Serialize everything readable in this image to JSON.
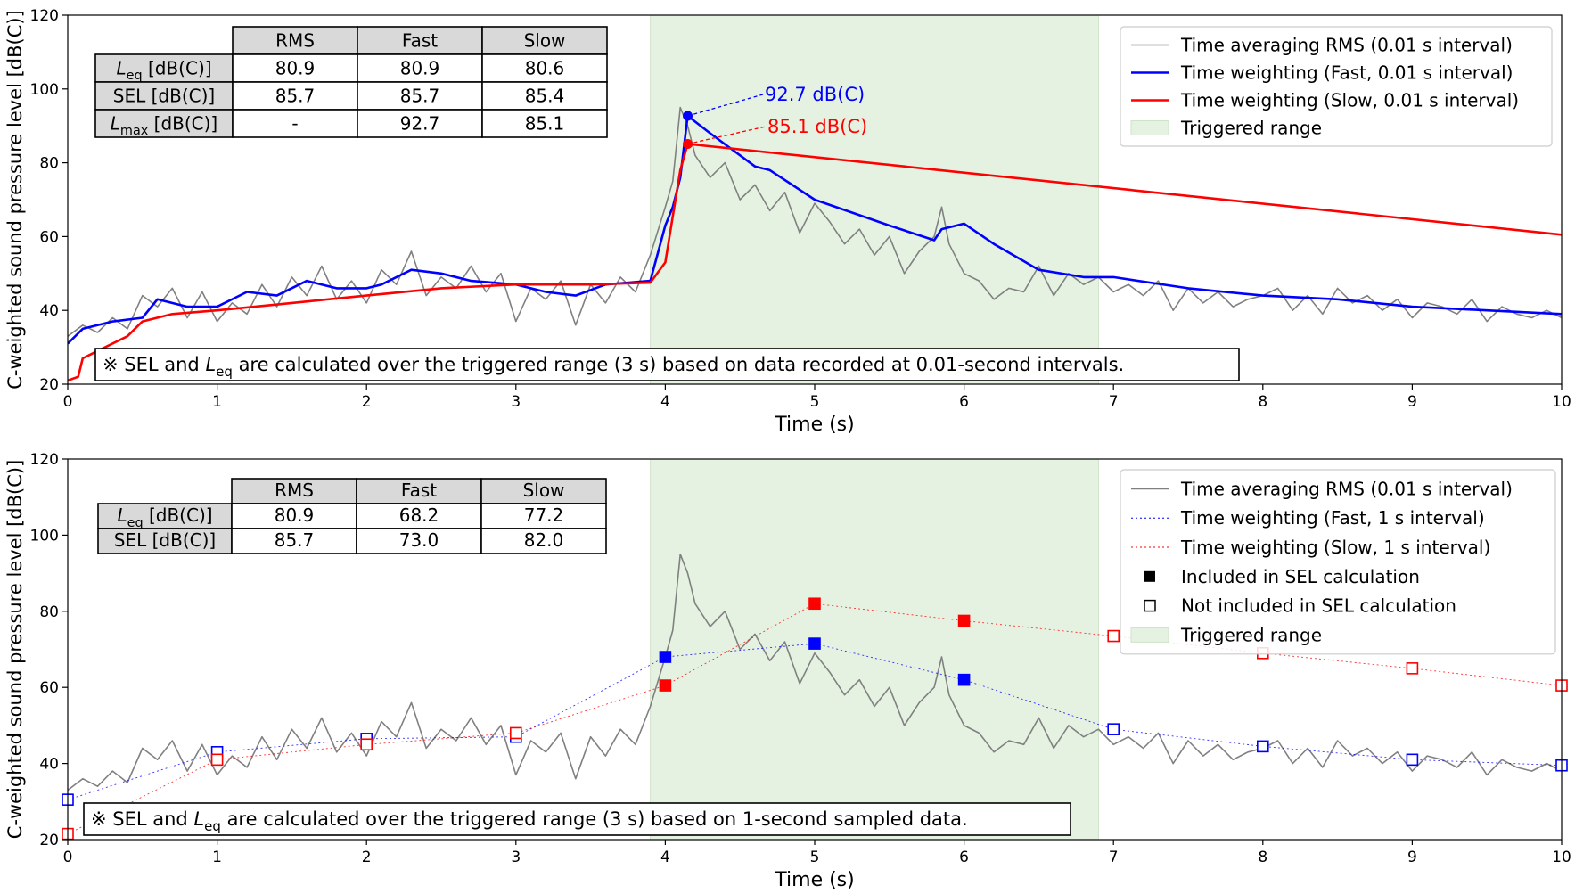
{
  "chart_data": [
    {
      "type": "line",
      "xlabel": "Time (s)",
      "ylabel": "C-weighted sound pressure level [dB(C)]",
      "xlim": [
        0,
        10
      ],
      "ylim": [
        20,
        120
      ],
      "xticks": [
        "0",
        "1",
        "2",
        "3",
        "4",
        "5",
        "6",
        "7",
        "8",
        "9",
        "10"
      ],
      "yticks": [
        "20",
        "40",
        "60",
        "80",
        "100",
        "120"
      ],
      "grid": false,
      "legend_position": "top-right",
      "triggered_range": [
        3.9,
        6.9
      ],
      "legend": [
        {
          "label": "Time averaging RMS (0.01 s interval)",
          "color": "#808080",
          "style": "line"
        },
        {
          "label": "Time weighting (Fast, 0.01 s interval)",
          "color": "#0000ff",
          "style": "line"
        },
        {
          "label": "Time weighting (Slow, 0.01 s interval)",
          "color": "#ff0000",
          "style": "line"
        },
        {
          "label": "Triggered range",
          "color": "#e5f2e1",
          "style": "patch"
        }
      ],
      "series": [
        {
          "name": "Time averaging RMS (0.01 s interval)",
          "color": "#808080",
          "x": [
            0,
            0.1,
            0.2,
            0.3,
            0.4,
            0.5,
            0.6,
            0.7,
            0.8,
            0.9,
            1.0,
            1.1,
            1.2,
            1.3,
            1.4,
            1.5,
            1.6,
            1.7,
            1.8,
            1.9,
            2.0,
            2.1,
            2.2,
            2.3,
            2.4,
            2.5,
            2.6,
            2.7,
            2.8,
            2.9,
            3.0,
            3.1,
            3.2,
            3.3,
            3.4,
            3.5,
            3.6,
            3.7,
            3.8,
            3.9,
            4.0,
            4.05,
            4.1,
            4.15,
            4.2,
            4.3,
            4.4,
            4.5,
            4.6,
            4.7,
            4.8,
            4.9,
            5.0,
            5.1,
            5.2,
            5.3,
            5.4,
            5.5,
            5.6,
            5.7,
            5.8,
            5.85,
            5.9,
            6.0,
            6.1,
            6.2,
            6.3,
            6.4,
            6.5,
            6.6,
            6.7,
            6.8,
            6.9,
            7.0,
            7.1,
            7.2,
            7.3,
            7.4,
            7.5,
            7.6,
            7.7,
            7.8,
            7.9,
            8.0,
            8.1,
            8.2,
            8.3,
            8.4,
            8.5,
            8.6,
            8.7,
            8.8,
            8.9,
            9.0,
            9.1,
            9.2,
            9.3,
            9.4,
            9.5,
            9.6,
            9.7,
            9.8,
            9.9,
            10.0
          ],
          "values": [
            33,
            36,
            34,
            38,
            35,
            44,
            41,
            46,
            38,
            45,
            37,
            42,
            39,
            47,
            41,
            49,
            44,
            52,
            43,
            48,
            42,
            51,
            47,
            56,
            44,
            49,
            46,
            52,
            45,
            50,
            37,
            46,
            43,
            48,
            36,
            47,
            42,
            49,
            45,
            55,
            68,
            75,
            95,
            90,
            82,
            76,
            80,
            70,
            74,
            67,
            72,
            61,
            69,
            64,
            58,
            62,
            55,
            60,
            50,
            56,
            60,
            68,
            58,
            50,
            48,
            43,
            46,
            45,
            52,
            44,
            50,
            47,
            49,
            45,
            47,
            44,
            48,
            40,
            46,
            42,
            45,
            41,
            43,
            44,
            46,
            40,
            44,
            39,
            46,
            42,
            44,
            40,
            43,
            38,
            42,
            41,
            39,
            43,
            37,
            41,
            39,
            38,
            40,
            38
          ]
        },
        {
          "name": "Time weighting (Fast, 0.01 s interval)",
          "color": "#0000ff",
          "x": [
            0,
            0.1,
            0.3,
            0.5,
            0.6,
            0.8,
            1.0,
            1.2,
            1.4,
            1.6,
            1.8,
            2.0,
            2.1,
            2.3,
            2.5,
            2.7,
            3.0,
            3.2,
            3.4,
            3.6,
            3.9,
            4.0,
            4.05,
            4.1,
            4.15,
            4.3,
            4.6,
            4.7,
            5.0,
            5.5,
            5.8,
            5.85,
            6.0,
            6.2,
            6.5,
            6.8,
            7.0,
            7.5,
            8.0,
            8.5,
            9.0,
            9.5,
            10.0
          ],
          "values": [
            31,
            35,
            37,
            38,
            43,
            41,
            41,
            45,
            44,
            48,
            46,
            46,
            47,
            51,
            50,
            48,
            47,
            45,
            44,
            47,
            48,
            63,
            68,
            76,
            92.7,
            88,
            79,
            78,
            70,
            63,
            59,
            62,
            63.5,
            58,
            51,
            49,
            49,
            46,
            44,
            43,
            41,
            40,
            39
          ]
        },
        {
          "name": "Time weighting (Slow, 0.01 s interval)",
          "color": "#ff0000",
          "x": [
            0,
            0.07,
            0.1,
            0.2,
            0.4,
            0.5,
            0.7,
            1.0,
            1.5,
            2.0,
            2.5,
            3.0,
            3.5,
            3.9,
            4.0,
            4.1,
            4.15,
            10.0
          ],
          "values": [
            21,
            22,
            27,
            29,
            33,
            37,
            39,
            40,
            42,
            44,
            46,
            47,
            47,
            47.5,
            53,
            78,
            85.1,
            60.5
          ]
        }
      ],
      "annotations": [
        {
          "label": "92.7 dB(C)",
          "x": 4.15,
          "y": 92.7,
          "color": "#0000ff"
        },
        {
          "label": "85.1 dB(C)",
          "x": 4.15,
          "y": 85.1,
          "color": "#ff0000"
        }
      ],
      "note": {
        "prefix": "※ SEL and ",
        "sym": "L",
        "sub": "eq",
        "suffix": " are calculated over the triggered range (3 s) based on data recorded at 0.01-second intervals."
      },
      "table": {
        "columns": [
          "RMS",
          "Fast",
          "Slow"
        ],
        "rows": [
          {
            "sym": "L",
            "sub": "eq",
            "unit": " [dB(C)]",
            "cells": [
              "80.9",
              "80.9",
              "80.6"
            ]
          },
          {
            "sym": "SEL",
            "sub": "",
            "unit": " [dB(C)]",
            "cells": [
              "85.7",
              "85.7",
              "85.4"
            ]
          },
          {
            "sym": "L",
            "sub": "max",
            "unit": " [dB(C)]",
            "cells": [
              "-",
              "92.7",
              "85.1"
            ]
          }
        ]
      }
    },
    {
      "type": "line",
      "xlabel": "Time (s)",
      "ylabel": "C-weighted sound pressure level [dB(C)]",
      "xlim": [
        0,
        10
      ],
      "ylim": [
        20,
        120
      ],
      "xticks": [
        "0",
        "1",
        "2",
        "3",
        "4",
        "5",
        "6",
        "7",
        "8",
        "9",
        "10"
      ],
      "yticks": [
        "20",
        "40",
        "60",
        "80",
        "100",
        "120"
      ],
      "grid": false,
      "legend_position": "top-right",
      "triggered_range": [
        3.9,
        6.9
      ],
      "legend": [
        {
          "label": "Time averaging RMS (0.01 s interval)",
          "color": "#808080",
          "style": "line"
        },
        {
          "label": "Time weighting (Fast, 1 s interval)",
          "color": "#0000ff",
          "style": "dotted"
        },
        {
          "label": "Time weighting (Slow, 1 s interval)",
          "color": "#ff0000",
          "style": "dotted"
        },
        {
          "label": "Included in SEL calculation",
          "color": "#000000",
          "style": "filled-square"
        },
        {
          "label": "Not included in SEL calculation",
          "color": "#000000",
          "style": "open-square"
        },
        {
          "label": "Triggered range",
          "color": "#e5f2e1",
          "style": "patch"
        }
      ],
      "series": [
        {
          "name": "Time averaging RMS (0.01 s interval)",
          "color": "#808080",
          "x": [
            0,
            0.1,
            0.2,
            0.3,
            0.4,
            0.5,
            0.6,
            0.7,
            0.8,
            0.9,
            1.0,
            1.1,
            1.2,
            1.3,
            1.4,
            1.5,
            1.6,
            1.7,
            1.8,
            1.9,
            2.0,
            2.1,
            2.2,
            2.3,
            2.4,
            2.5,
            2.6,
            2.7,
            2.8,
            2.9,
            3.0,
            3.1,
            3.2,
            3.3,
            3.4,
            3.5,
            3.6,
            3.7,
            3.8,
            3.9,
            4.0,
            4.05,
            4.1,
            4.15,
            4.2,
            4.3,
            4.4,
            4.5,
            4.6,
            4.7,
            4.8,
            4.9,
            5.0,
            5.1,
            5.2,
            5.3,
            5.4,
            5.5,
            5.6,
            5.7,
            5.8,
            5.85,
            5.9,
            6.0,
            6.1,
            6.2,
            6.3,
            6.4,
            6.5,
            6.6,
            6.7,
            6.8,
            6.9,
            7.0,
            7.1,
            7.2,
            7.3,
            7.4,
            7.5,
            7.6,
            7.7,
            7.8,
            7.9,
            8.0,
            8.1,
            8.2,
            8.3,
            8.4,
            8.5,
            8.6,
            8.7,
            8.8,
            8.9,
            9.0,
            9.1,
            9.2,
            9.3,
            9.4,
            9.5,
            9.6,
            9.7,
            9.8,
            9.9,
            10.0
          ],
          "values": [
            33,
            36,
            34,
            38,
            35,
            44,
            41,
            46,
            38,
            45,
            37,
            42,
            39,
            47,
            41,
            49,
            44,
            52,
            43,
            48,
            42,
            51,
            47,
            56,
            44,
            49,
            46,
            52,
            45,
            50,
            37,
            46,
            43,
            48,
            36,
            47,
            42,
            49,
            45,
            55,
            68,
            75,
            95,
            90,
            82,
            76,
            80,
            70,
            74,
            67,
            72,
            61,
            69,
            64,
            58,
            62,
            55,
            60,
            50,
            56,
            60,
            68,
            58,
            50,
            48,
            43,
            46,
            45,
            52,
            44,
            50,
            47,
            49,
            45,
            47,
            44,
            48,
            40,
            46,
            42,
            45,
            41,
            43,
            44,
            46,
            40,
            44,
            39,
            46,
            42,
            44,
            40,
            43,
            38,
            42,
            41,
            39,
            43,
            37,
            41,
            39,
            38,
            40,
            38
          ]
        },
        {
          "name": "Time weighting (Fast, 1 s interval)",
          "color": "#0000ff",
          "x": [
            0,
            1,
            2,
            3,
            4,
            5,
            6,
            7,
            8,
            9,
            10
          ],
          "values": [
            30.5,
            43,
            46.5,
            47,
            68,
            71.5,
            62,
            49,
            44.5,
            41,
            39.5
          ],
          "included": [
            false,
            false,
            false,
            false,
            true,
            true,
            true,
            false,
            false,
            false,
            false
          ]
        },
        {
          "name": "Time weighting (Slow, 1 s interval)",
          "color": "#ff0000",
          "x": [
            0,
            1,
            2,
            3,
            4,
            5,
            6,
            7,
            8,
            9,
            10
          ],
          "values": [
            21.5,
            41,
            45,
            48,
            60.5,
            82,
            77.5,
            73.5,
            69,
            65,
            60.5
          ],
          "included": [
            false,
            false,
            false,
            false,
            true,
            true,
            true,
            false,
            false,
            false,
            false
          ]
        }
      ],
      "note": {
        "prefix": "※ SEL and ",
        "sym": "L",
        "sub": "eq",
        "suffix": " are calculated over the triggered range (3 s) based on 1-second sampled data."
      },
      "table": {
        "columns": [
          "RMS",
          "Fast",
          "Slow"
        ],
        "rows": [
          {
            "sym": "L",
            "sub": "eq",
            "unit": " [dB(C)]",
            "cells": [
              "80.9",
              "68.2",
              "77.2"
            ]
          },
          {
            "sym": "SEL",
            "sub": "",
            "unit": " [dB(C)]",
            "cells": [
              "85.7",
              "73.0",
              "82.0"
            ]
          }
        ]
      }
    }
  ]
}
